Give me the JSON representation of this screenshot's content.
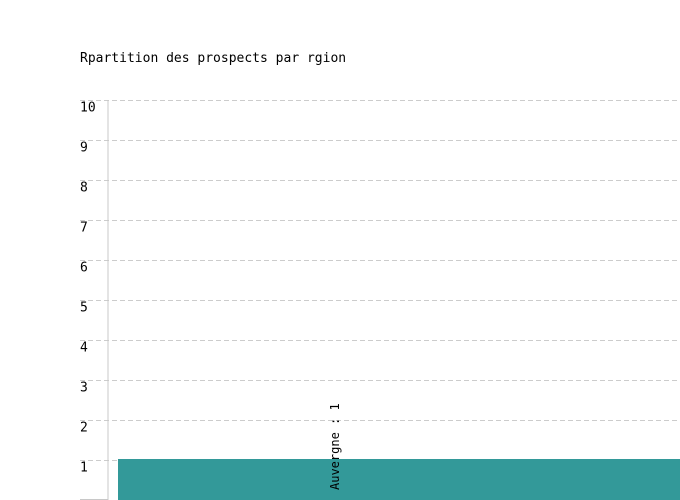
{
  "chart_data": {
    "type": "bar",
    "title": "Rpartition des prospects par rgion",
    "categories": [
      "Auvergne"
    ],
    "values": [
      1
    ],
    "data_labels": [
      "Auvergne : 1"
    ],
    "ylim": [
      0,
      10
    ],
    "yticks": [
      1,
      2,
      3,
      4,
      5,
      6,
      7,
      8,
      9,
      10
    ],
    "grid": true,
    "bar_color": "#339999",
    "grid_color": "#cccccc"
  }
}
